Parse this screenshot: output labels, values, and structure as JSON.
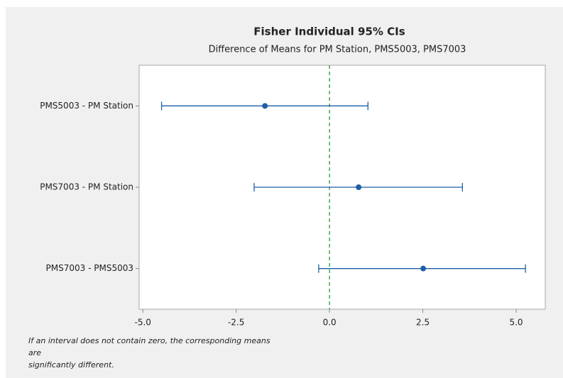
{
  "chart_data": {
    "type": "interval",
    "title": "Fisher Individual 95% CIs",
    "subtitle": "Difference of Means for PM Station, PMS5003, PMS7003",
    "categories": [
      "PMS5003 - PM Station",
      "PMS7003 - PM Station",
      "PMS7003 - PMS5003"
    ],
    "values": [
      -1.73,
      0.78,
      2.51
    ],
    "lower": [
      -4.5,
      -2.02,
      -0.29
    ],
    "upper": [
      1.03,
      3.56,
      5.25
    ],
    "color": "#1f5fa8",
    "reference_line": 0,
    "reference_color": "#3cab4a",
    "xlim": [
      -5.1,
      5.78
    ],
    "xticks": [
      {
        "value": -5,
        "label": "-5.0"
      },
      {
        "value": -2.5,
        "label": "-2.5"
      },
      {
        "value": 0,
        "label": "0.0"
      },
      {
        "value": 2.5,
        "label": "2.5"
      },
      {
        "value": 5,
        "label": "5.0"
      }
    ],
    "footnote": [
      "If an interval does not contain zero, the corresponding means",
      "are",
      "significantly different."
    ]
  }
}
